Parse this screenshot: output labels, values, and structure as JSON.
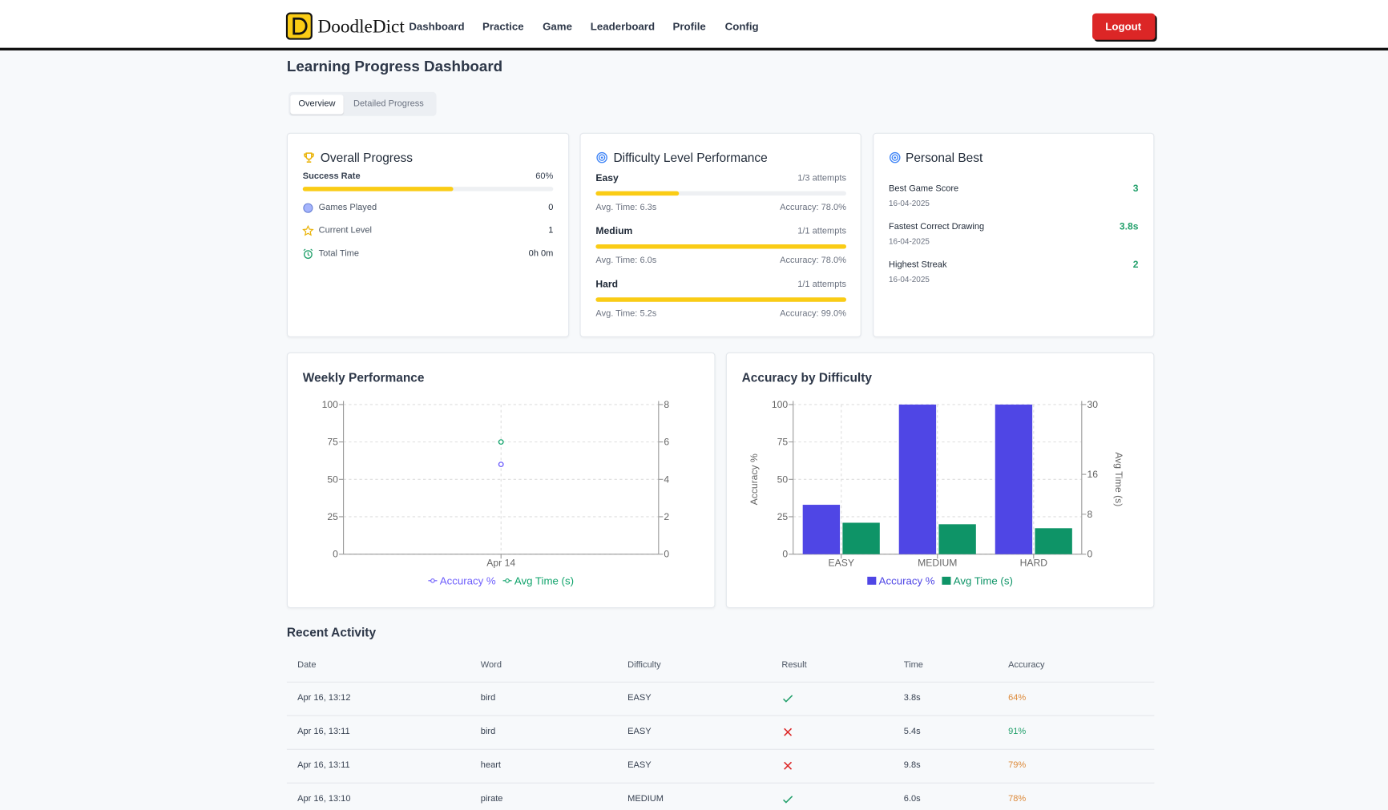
{
  "nav": {
    "brand": "DoodleDict",
    "links": [
      "Dashboard",
      "Practice",
      "Game",
      "Leaderboard",
      "Profile",
      "Config"
    ],
    "logout": "Logout"
  },
  "page_title": "Learning Progress Dashboard",
  "tabs": [
    "Overview",
    "Detailed Progress"
  ],
  "overall_progress": {
    "title": "Overall Progress",
    "success_rate": {
      "label": "Success Rate",
      "value": 60,
      "value_label": "60%"
    },
    "stats": [
      {
        "label": "Games Played",
        "value": "0"
      },
      {
        "label": "Current Level",
        "value": "1"
      },
      {
        "label": "Total Time",
        "value": "0h 0m"
      }
    ]
  },
  "difficulty_performance": {
    "title": "Difficulty Level Performance",
    "levels": [
      {
        "name": "Easy",
        "completed": 1,
        "attempts": 3,
        "attempts_label": "1/3 attempts",
        "avg_time": "Avg. Time: 6.3s",
        "accuracy": "Accuracy: 78.0%"
      },
      {
        "name": "Medium",
        "completed": 1,
        "attempts": 1,
        "attempts_label": "1/1 attempts",
        "avg_time": "Avg. Time: 6.0s",
        "accuracy": "Accuracy: 78.0%"
      },
      {
        "name": "Hard",
        "completed": 1,
        "attempts": 1,
        "attempts_label": "1/1 attempts",
        "avg_time": "Avg. Time: 5.2s",
        "accuracy": "Accuracy: 99.0%"
      }
    ]
  },
  "personal_best": {
    "title": "Personal Best",
    "items": [
      {
        "label": "Best Game Score",
        "date": "16-04-2025",
        "value": "3"
      },
      {
        "label": "Fastest Correct Drawing",
        "date": "16-04-2025",
        "value": "3.8s"
      },
      {
        "label": "Highest Streak",
        "date": "16-04-2025",
        "value": "2"
      }
    ]
  },
  "chart_data": [
    {
      "type": "line",
      "title": "Weekly Performance",
      "categories": [
        "Apr 14"
      ],
      "series": [
        {
          "name": "Accuracy %",
          "color": "#6d5dfc",
          "values": [
            60
          ]
        },
        {
          "name": "Avg Time (s)",
          "color": "#10a36b",
          "values": [
            6
          ],
          "axis": "y2"
        }
      ],
      "ylim": [
        0,
        100
      ],
      "yticks": [
        0,
        25,
        50,
        75,
        100
      ],
      "y2lim": [
        0,
        8
      ],
      "y2ticks": [
        0,
        2,
        4,
        6,
        8
      ],
      "grid": true
    },
    {
      "type": "bar",
      "title": "Accuracy by Difficulty",
      "categories": [
        "EASY",
        "MEDIUM",
        "HARD"
      ],
      "series": [
        {
          "name": "Accuracy %",
          "color": "#4f46e5",
          "values": [
            33,
            100,
            100
          ]
        },
        {
          "name": "Avg Time (s)",
          "color": "#0e9467",
          "values": [
            6.3,
            6.0,
            5.2
          ],
          "axis": "y2"
        }
      ],
      "ylim": [
        0,
        100
      ],
      "yticks": [
        0,
        25,
        50,
        75,
        100
      ],
      "y2lim": [
        0,
        30
      ],
      "y2ticks": [
        0,
        8,
        16,
        30
      ],
      "ylabel": "Accuracy %",
      "y2label": "Avg Time (s)",
      "grid": true
    }
  ],
  "recent_activity": {
    "title": "Recent Activity",
    "columns": [
      "Date",
      "Word",
      "Difficulty",
      "Result",
      "Time",
      "Accuracy"
    ],
    "rows": [
      {
        "date": "Apr 16, 13:12",
        "word": "bird",
        "difficulty": "EASY",
        "correct": true,
        "time": "3.8s",
        "accuracy": "64%",
        "accuracy_color": "#dd8a3a"
      },
      {
        "date": "Apr 16, 13:11",
        "word": "bird",
        "difficulty": "EASY",
        "correct": false,
        "time": "5.4s",
        "accuracy": "91%",
        "accuracy_color": "#22a06b"
      },
      {
        "date": "Apr 16, 13:11",
        "word": "heart",
        "difficulty": "EASY",
        "correct": false,
        "time": "9.8s",
        "accuracy": "79%",
        "accuracy_color": "#dd8a3a"
      },
      {
        "date": "Apr 16, 13:10",
        "word": "pirate",
        "difficulty": "MEDIUM",
        "correct": true,
        "time": "6.0s",
        "accuracy": "78%",
        "accuracy_color": "#dd8a3a"
      }
    ]
  }
}
